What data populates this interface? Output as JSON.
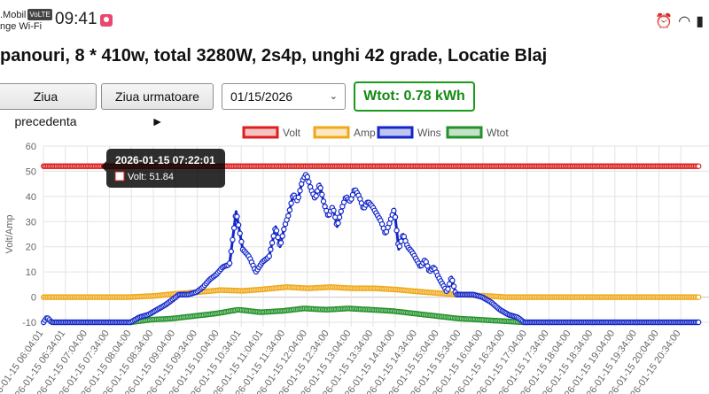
{
  "status_bar": {
    "carrier_line1": ".Mobil",
    "carrier_badge": "VoLTE",
    "carrier_line2": "nge Wi-Fi",
    "time": "09:41",
    "icons": [
      "alarm-icon",
      "wifi-icon",
      "signal-icon"
    ]
  },
  "page": {
    "title": "panouri, 8 * 410w, total 3280W, 2s4p, unghi 42 grade, Locatie Blaj"
  },
  "toolbar": {
    "prev_label": "Ziua precedenta",
    "next_label": "Ziua urmatoare ►",
    "date_value": "01/15/2026",
    "wtot_label": "Wtot: 0.78 kWh"
  },
  "colors": {
    "volt": "#dd1f1f",
    "amp": "#f0a818",
    "wins": "#1326c8",
    "wtot": "#22922a",
    "wtot_text": "#138a13"
  },
  "chart_data": {
    "type": "line",
    "ylabel": "Volt/Amp",
    "ylim": [
      -10,
      60
    ],
    "yticks": [
      -10,
      0,
      10,
      20,
      30,
      40,
      50,
      60
    ],
    "grid": true,
    "legend_position": "top",
    "x_tick_labels": [
      "2026-01-15 06:04:01",
      "2026-01-15 06:34:01",
      "2026-01-15 07:04:00",
      "2026-01-15 07:34:00",
      "2026-01-15 08:04:00",
      "2026-01-15 08:34:00",
      "2026-01-15 09:04:00",
      "2026-01-15 09:34:00",
      "2026-01-15 10:04:00",
      "2026-01-15 10:34:01",
      "2026-01-15 11:04:01",
      "2026-01-15 11:34:00",
      "2026-01-15 12:04:00",
      "2026-01-15 12:34:00",
      "2026-01-15 13:04:00",
      "2026-01-15 13:34:00",
      "2026-01-15 14:04:00",
      "2026-01-15 14:34:00",
      "2026-01-15 15:04:00",
      "2026-01-15 15:34:00",
      "2026-01-15 16:04:00",
      "2026-01-15 16:34:00",
      "2026-01-15 17:04:00",
      "2026-01-15 17:34:00",
      "2026-01-15 18:04:00",
      "2026-01-15 18:34:00",
      "2026-01-15 19:04:00",
      "2026-01-15 19:34:00",
      "2026-01-15 20:04:00",
      "2026-01-15 20:34:00"
    ],
    "series": [
      {
        "name": "Volt",
        "color": "#dd1f1f",
        "points": [
          [
            6.07,
            52
          ],
          [
            21.0,
            52
          ]
        ]
      },
      {
        "name": "Amp",
        "color": "#f0a818",
        "points": [
          [
            6.07,
            0
          ],
          [
            8.0,
            0
          ],
          [
            8.6,
            0.5
          ],
          [
            9.0,
            1.2
          ],
          [
            9.6,
            2
          ],
          [
            10.1,
            2.8
          ],
          [
            10.6,
            2.5
          ],
          [
            11.0,
            3
          ],
          [
            11.6,
            4
          ],
          [
            12.1,
            3.5
          ],
          [
            12.6,
            4
          ],
          [
            13.1,
            3.5
          ],
          [
            13.6,
            3.5
          ],
          [
            14.1,
            3
          ],
          [
            14.6,
            2.2
          ],
          [
            15.1,
            1.5
          ],
          [
            15.6,
            1
          ],
          [
            16.1,
            0.5
          ],
          [
            16.6,
            0
          ],
          [
            21.0,
            0
          ]
        ]
      },
      {
        "name": "Wins",
        "color": "#1326c8",
        "points": [
          [
            6.07,
            -10
          ],
          [
            6.15,
            -8
          ],
          [
            6.25,
            -10
          ],
          [
            8.05,
            -10
          ],
          [
            8.25,
            -8
          ],
          [
            8.45,
            -7
          ],
          [
            8.65,
            -5
          ],
          [
            8.85,
            -3
          ],
          [
            9.0,
            -1
          ],
          [
            9.15,
            1
          ],
          [
            9.35,
            1
          ],
          [
            9.55,
            2
          ],
          [
            9.7,
            4
          ],
          [
            9.85,
            7
          ],
          [
            10.0,
            9
          ],
          [
            10.15,
            12
          ],
          [
            10.3,
            13
          ],
          [
            10.45,
            34
          ],
          [
            10.6,
            19
          ],
          [
            10.75,
            16
          ],
          [
            10.9,
            10
          ],
          [
            11.05,
            14
          ],
          [
            11.2,
            16
          ],
          [
            11.35,
            28
          ],
          [
            11.45,
            20
          ],
          [
            11.55,
            28
          ],
          [
            11.65,
            33
          ],
          [
            11.75,
            41
          ],
          [
            11.85,
            38
          ],
          [
            11.95,
            46
          ],
          [
            12.05,
            49
          ],
          [
            12.15,
            43
          ],
          [
            12.25,
            39
          ],
          [
            12.35,
            45
          ],
          [
            12.45,
            37
          ],
          [
            12.55,
            32
          ],
          [
            12.65,
            36
          ],
          [
            12.75,
            28
          ],
          [
            12.85,
            35
          ],
          [
            12.95,
            40
          ],
          [
            13.05,
            38
          ],
          [
            13.15,
            43
          ],
          [
            13.25,
            40
          ],
          [
            13.35,
            35
          ],
          [
            13.45,
            38
          ],
          [
            13.55,
            36
          ],
          [
            13.65,
            33
          ],
          [
            13.75,
            30
          ],
          [
            13.85,
            25
          ],
          [
            13.95,
            30
          ],
          [
            14.05,
            35
          ],
          [
            14.15,
            19
          ],
          [
            14.25,
            25
          ],
          [
            14.35,
            20
          ],
          [
            14.45,
            18
          ],
          [
            14.55,
            15
          ],
          [
            14.65,
            12
          ],
          [
            14.75,
            15
          ],
          [
            14.85,
            10
          ],
          [
            14.95,
            12
          ],
          [
            15.05,
            8
          ],
          [
            15.15,
            5
          ],
          [
            15.25,
            2
          ],
          [
            15.35,
            8
          ],
          [
            15.45,
            1
          ],
          [
            15.65,
            1
          ],
          [
            15.85,
            1
          ],
          [
            16.05,
            0
          ],
          [
            16.25,
            -2
          ],
          [
            16.45,
            -5
          ],
          [
            16.65,
            -7
          ],
          [
            16.85,
            -8
          ],
          [
            17.0,
            -10
          ],
          [
            21.0,
            -10
          ]
        ]
      },
      {
        "name": "Wtot",
        "color": "#22922a",
        "points": [
          [
            8.05,
            -10
          ],
          [
            8.5,
            -9
          ],
          [
            9.0,
            -8.5
          ],
          [
            9.5,
            -7.5
          ],
          [
            10.0,
            -6.5
          ],
          [
            10.5,
            -5
          ],
          [
            11.0,
            -6
          ],
          [
            11.5,
            -5.5
          ],
          [
            12.0,
            -4.5
          ],
          [
            12.5,
            -5
          ],
          [
            13.0,
            -4.5
          ],
          [
            13.5,
            -5
          ],
          [
            14.0,
            -5.5
          ],
          [
            14.5,
            -6.5
          ],
          [
            15.0,
            -7.5
          ],
          [
            15.5,
            -8.5
          ],
          [
            16.0,
            -9
          ],
          [
            16.5,
            -9.5
          ],
          [
            17.0,
            -10
          ]
        ]
      }
    ],
    "tooltip": {
      "title": "2026-01-15 07:22:01",
      "label": "Volt: 51.84"
    }
  }
}
